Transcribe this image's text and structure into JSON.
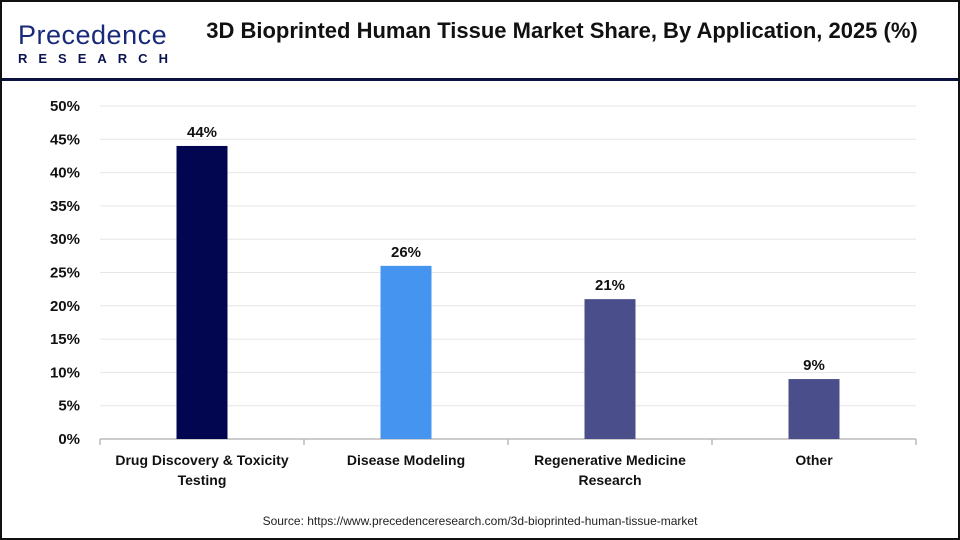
{
  "logo": {
    "line1": "Precedence",
    "line2": "RESEARCH"
  },
  "title": "3D Bioprinted Human Tissue Market Share, By Application, 2025 (%)",
  "source": "Source: https://www.precedenceresearch.com/3d-bioprinted-human-tissue-market",
  "chart_data": {
    "type": "bar",
    "title": "3D Bioprinted Human Tissue Market Share, By Application, 2025 (%)",
    "categories": [
      [
        "Drug Discovery & Toxicity",
        "Testing"
      ],
      [
        "Disease Modeling"
      ],
      [
        "Regenerative Medicine",
        "Research"
      ],
      [
        "Other"
      ]
    ],
    "values": [
      44,
      26,
      21,
      9
    ],
    "data_labels": [
      "44%",
      "26%",
      "21%",
      "9%"
    ],
    "colors": [
      "#020550",
      "#4494F0",
      "#4A4E8A",
      "#4A4E8A"
    ],
    "ylim": [
      0,
      50
    ],
    "yticks": [
      "0%",
      "5%",
      "10%",
      "15%",
      "20%",
      "25%",
      "30%",
      "35%",
      "40%",
      "45%",
      "50%"
    ],
    "grid": true,
    "xlabel": "",
    "ylabel": ""
  }
}
